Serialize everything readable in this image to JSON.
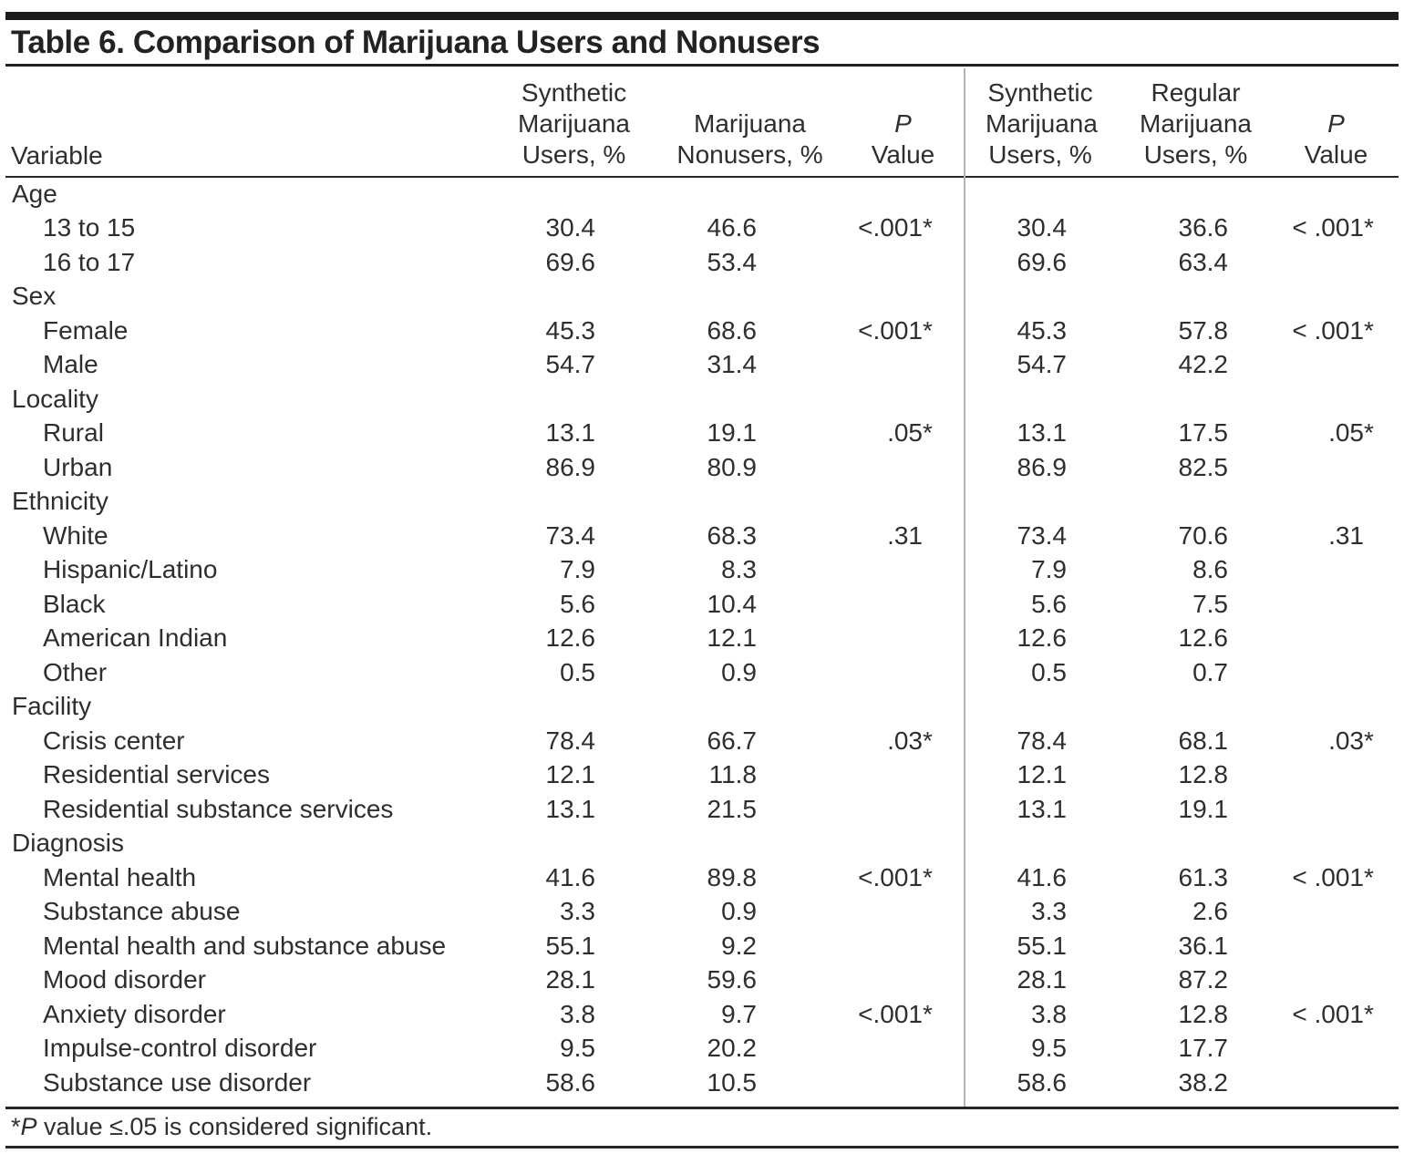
{
  "title": "Table 6. Comparison of Marijuana Users and Nonusers",
  "header": {
    "variable_label": "Variable",
    "col_synthetic_left_lines": [
      "Synthetic",
      "Marijuana",
      "Users, %"
    ],
    "col_nonusers_lines": [
      "Marijuana",
      "Nonusers, %"
    ],
    "col_pvalue_left_lines": [
      "P",
      "Value"
    ],
    "col_synthetic_right_lines": [
      "Synthetic",
      "Marijuana",
      "Users, %"
    ],
    "col_regular_lines": [
      "Regular",
      "Marijuana",
      "Users, %"
    ],
    "col_pvalue_right_lines": [
      "P",
      "Value"
    ]
  },
  "rows": [
    {
      "label": "Age",
      "indent": 0,
      "values": [
        "",
        "",
        "",
        "",
        "",
        ""
      ]
    },
    {
      "label": "13 to 15",
      "indent": 1,
      "values": [
        "30.4",
        "46.6",
        "<.001*",
        "30.4",
        "36.6",
        "< .001*"
      ]
    },
    {
      "label": "16 to 17",
      "indent": 1,
      "values": [
        "69.6",
        "53.4",
        "",
        "69.6",
        "63.4",
        ""
      ]
    },
    {
      "label": "Sex",
      "indent": 0,
      "values": [
        "",
        "",
        "",
        "",
        "",
        ""
      ]
    },
    {
      "label": "Female",
      "indent": 1,
      "values": [
        "45.3",
        "68.6",
        "<.001*",
        "45.3",
        "57.8",
        "< .001*"
      ]
    },
    {
      "label": "Male",
      "indent": 1,
      "values": [
        "54.7",
        "31.4",
        "",
        "54.7",
        "42.2",
        ""
      ]
    },
    {
      "label": "Locality",
      "indent": 0,
      "values": [
        "",
        "",
        "",
        "",
        "",
        ""
      ]
    },
    {
      "label": "Rural",
      "indent": 1,
      "values": [
        "13.1",
        "19.1",
        ".05*",
        "13.1",
        "17.5",
        ".05*"
      ]
    },
    {
      "label": "Urban",
      "indent": 1,
      "values": [
        "86.9",
        "80.9",
        "",
        "86.9",
        "82.5",
        ""
      ]
    },
    {
      "label": "Ethnicity",
      "indent": 0,
      "values": [
        "",
        "",
        "",
        "",
        "",
        ""
      ]
    },
    {
      "label": "White",
      "indent": 1,
      "values": [
        "73.4",
        "68.3",
        ".31",
        "73.4",
        "70.6",
        ".31"
      ]
    },
    {
      "label": "Hispanic/Latino",
      "indent": 1,
      "values": [
        "7.9",
        "8.3",
        "",
        "7.9",
        "8.6",
        ""
      ]
    },
    {
      "label": "Black",
      "indent": 1,
      "values": [
        "5.6",
        "10.4",
        "",
        "5.6",
        "7.5",
        ""
      ]
    },
    {
      "label": "American Indian",
      "indent": 1,
      "values": [
        "12.6",
        "12.1",
        "",
        "12.6",
        "12.6",
        ""
      ]
    },
    {
      "label": "Other",
      "indent": 1,
      "values": [
        "0.5",
        "0.9",
        "",
        "0.5",
        "0.7",
        ""
      ]
    },
    {
      "label": "Facility",
      "indent": 0,
      "values": [
        "",
        "",
        "",
        "",
        "",
        ""
      ]
    },
    {
      "label": "Crisis center",
      "indent": 1,
      "values": [
        "78.4",
        "66.7",
        ".03*",
        "78.4",
        "68.1",
        ".03*"
      ]
    },
    {
      "label": "Residential services",
      "indent": 1,
      "values": [
        "12.1",
        "11.8",
        "",
        "12.1",
        "12.8",
        ""
      ]
    },
    {
      "label": "Residential substance services",
      "indent": 1,
      "values": [
        "13.1",
        "21.5",
        "",
        "13.1",
        "19.1",
        ""
      ]
    },
    {
      "label": "Diagnosis",
      "indent": 0,
      "values": [
        "",
        "",
        "",
        "",
        "",
        ""
      ]
    },
    {
      "label": "Mental health",
      "indent": 1,
      "values": [
        "41.6",
        "89.8",
        "<.001*",
        "41.6",
        "61.3",
        "< .001*"
      ]
    },
    {
      "label": "Substance abuse",
      "indent": 1,
      "values": [
        "3.3",
        "0.9",
        "",
        "3.3",
        "2.6",
        ""
      ]
    },
    {
      "label": "Mental health and substance abuse",
      "indent": 1,
      "values": [
        "55.1",
        "9.2",
        "",
        "55.1",
        "36.1",
        ""
      ]
    },
    {
      "label": "Mood disorder",
      "indent": 1,
      "values": [
        "28.1",
        "59.6",
        "",
        "28.1",
        "87.2",
        ""
      ]
    },
    {
      "label": "Anxiety disorder",
      "indent": 1,
      "values": [
        "3.8",
        "9.7",
        "<.001*",
        "3.8",
        "12.8",
        "< .001*"
      ]
    },
    {
      "label": "Impulse-control disorder",
      "indent": 1,
      "values": [
        "9.5",
        "20.2",
        "",
        "9.5",
        "17.7",
        ""
      ]
    },
    {
      "label": "Substance use disorder",
      "indent": 1,
      "values": [
        "58.6",
        "10.5",
        "",
        "58.6",
        "38.2",
        ""
      ]
    }
  ],
  "footnote": {
    "star": "*",
    "p_symbol": "P",
    "rest": " value ≤.05 is considered significant."
  }
}
